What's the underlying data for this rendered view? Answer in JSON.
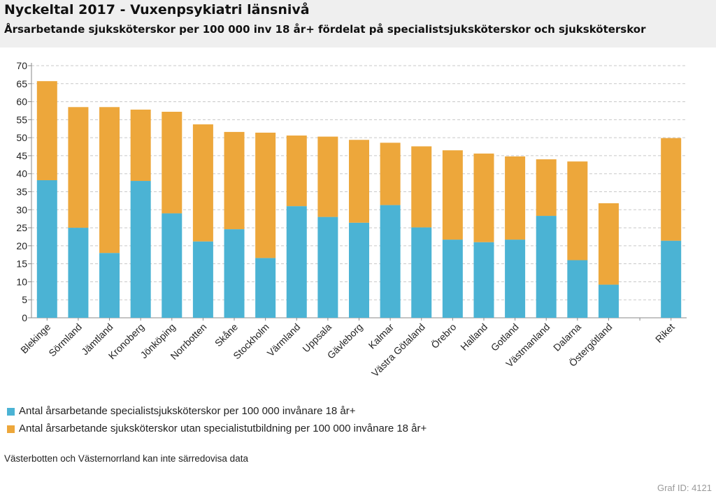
{
  "header": {
    "title": "Nyckeltal 2017 - Vuxenpsykiatri länsnivå",
    "subtitle": "Årsarbetande sjuksköterskor per 100 000 inv 18 år+ fördelat på specialistsjuksköterskor och sjuksköterskor"
  },
  "chart_data": {
    "type": "bar",
    "stacked": true,
    "categories": [
      "Blekinge",
      "Sörmland",
      "Jämtland",
      "Kronoberg",
      "Jönköping",
      "Norrbotten",
      "Skåne",
      "Stockholm",
      "Värmland",
      "Uppsala",
      "Gävleborg",
      "Kalmar",
      "Västra Götaland",
      "Örebro",
      "Halland",
      "Gotland",
      "Västmanland",
      "Dalarna",
      "Östergötland",
      "",
      "Riket"
    ],
    "series": [
      {
        "name": "Antal årsarbetande specialistsjuksköterskor per 100 000 invånare 18 år+",
        "color": "#4bb3d4",
        "values": [
          38.2,
          25.0,
          18.0,
          38.0,
          29.0,
          21.2,
          24.6,
          16.6,
          31.0,
          28.0,
          26.4,
          31.3,
          25.1,
          21.7,
          21.0,
          21.7,
          28.3,
          16.0,
          9.2,
          null,
          21.4
        ]
      },
      {
        "name": "Antal årsarbetande sjuksköterskor utan specialistutbildning per 100 000 invånare 18 år+",
        "color": "#eda73b",
        "values": [
          27.5,
          33.5,
          40.5,
          19.8,
          28.2,
          32.5,
          27.0,
          34.8,
          19.6,
          22.3,
          23.0,
          17.3,
          22.5,
          24.8,
          24.6,
          23.1,
          15.7,
          27.4,
          22.6,
          null,
          28.5
        ]
      }
    ],
    "y_ticks": [
      0,
      5,
      10,
      15,
      20,
      25,
      30,
      35,
      40,
      45,
      50,
      55,
      60,
      65,
      70
    ],
    "ylim": [
      0,
      70
    ],
    "grid": true,
    "legend_position": "bottom"
  },
  "note": "Västerbotten och Västernorrland kan inte särredovisa data",
  "graf_id": "Graf ID: 4121"
}
